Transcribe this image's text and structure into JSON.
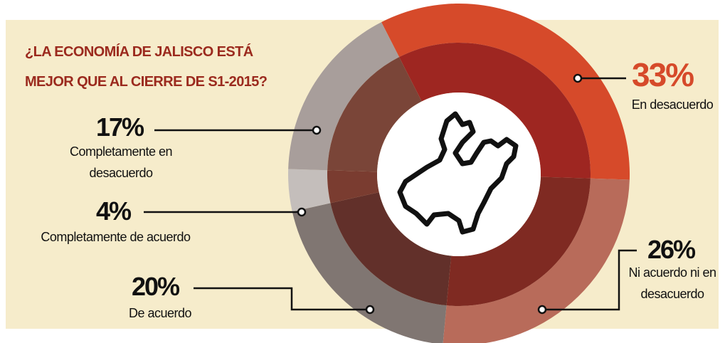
{
  "chart_data": {
    "type": "pie",
    "title": [
      "¿LA ECONOMÍA DE JALISCO ESTÁ",
      "MEJOR QUE AL CIERRE DE S1-2015?"
    ],
    "categories": [
      "En desacuerdo",
      "Ni acuerdo ni en desacuerdo",
      "De acuerdo",
      "Completamente de acuerdo",
      "Completamente en desacuerdo"
    ],
    "values": [
      33,
      26,
      20,
      4,
      17
    ],
    "value_labels": [
      "33%",
      "26%",
      "20%",
      "4%",
      "17%"
    ],
    "colors": [
      "#d64a2a",
      "#b86b5a",
      "#807672",
      "#c4bebb",
      "#a89e9b"
    ],
    "inner_colors": [
      "#9e2621",
      "#7f2a22",
      "#62302a",
      "#7a3c30",
      "#7a4538"
    ]
  }
}
